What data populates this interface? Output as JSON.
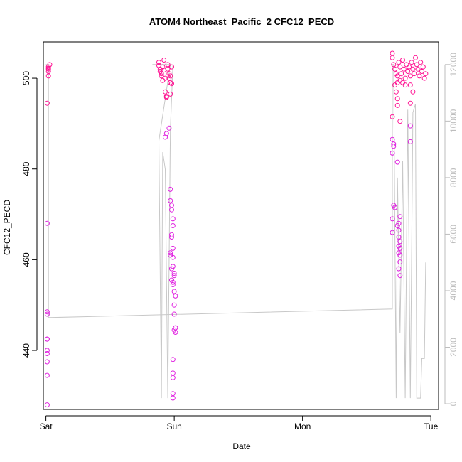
{
  "chart_data": {
    "type": "scatter",
    "title": "ATOM4 Northeast_Pacific_2 CFC12_PECD",
    "xlabel": "Date",
    "ylabel": "CFC12_PECD",
    "x_ticks": [
      {
        "label": "Sat",
        "value": 0
      },
      {
        "label": "Sun",
        "value": 1
      },
      {
        "label": "Mon",
        "value": 2
      },
      {
        "label": "Tue",
        "value": 3
      }
    ],
    "ylim": [
      427,
      508
    ],
    "y_ticks": [
      440,
      460,
      480,
      500
    ],
    "y2lim": [
      -200,
      12800
    ],
    "y2_ticks": [
      0,
      2000,
      4000,
      6000,
      8000,
      10000,
      12000
    ],
    "colors": {
      "points": "#ff1493",
      "points_alt": "#e020e0",
      "secondary_line": "#c8c8c8",
      "axis": "#000000",
      "secondary_axis": "#bdbdbd"
    },
    "series": [
      {
        "values": [
          [
            0.01,
            428.0
          ],
          [
            0.01,
            434.5
          ],
          [
            0.01,
            437.5
          ],
          [
            0.01,
            439.3
          ],
          [
            0.01,
            440.0
          ],
          [
            0.01,
            442.5
          ],
          [
            0.01,
            442.5
          ],
          [
            0.01,
            448.0
          ],
          [
            0.01,
            448.5
          ],
          [
            0.01,
            468.0
          ],
          [
            0.01,
            494.5
          ],
          [
            0.02,
            500.5
          ],
          [
            0.02,
            501.5
          ],
          [
            0.02,
            502.0
          ],
          [
            0.02,
            502.2
          ],
          [
            0.02,
            502.5
          ],
          [
            0.03,
            503.0
          ],
          [
            0.88,
            503.5
          ],
          [
            0.88,
            502.8
          ],
          [
            0.89,
            502.0
          ],
          [
            0.89,
            501.5
          ],
          [
            0.9,
            500.5
          ],
          [
            0.9,
            501.0
          ],
          [
            0.91,
            499.5
          ],
          [
            0.91,
            502.5
          ],
          [
            0.92,
            504.0
          ],
          [
            0.92,
            501.8
          ],
          [
            0.93,
            500.0
          ],
          [
            0.93,
            497.0
          ],
          [
            0.94,
            496.0
          ],
          [
            0.94,
            495.8
          ],
          [
            0.95,
            503.0
          ],
          [
            0.95,
            502.0
          ],
          [
            0.96,
            501.0
          ],
          [
            0.96,
            500.0
          ],
          [
            0.97,
            499.0
          ],
          [
            0.97,
            500.5
          ],
          [
            0.98,
            502.5
          ],
          [
            0.98,
            498.8
          ],
          [
            0.93,
            487.0
          ],
          [
            0.94,
            487.8
          ],
          [
            0.96,
            489.0
          ],
          [
            0.97,
            496.5
          ],
          [
            0.97,
            475.5
          ],
          [
            0.97,
            473.0
          ],
          [
            0.98,
            472.0
          ],
          [
            0.98,
            471.0
          ],
          [
            0.99,
            469.0
          ],
          [
            0.99,
            467.5
          ],
          [
            0.98,
            465.5
          ],
          [
            0.98,
            465.0
          ],
          [
            0.97,
            461.5
          ],
          [
            0.97,
            461.0
          ],
          [
            0.99,
            462.5
          ],
          [
            0.99,
            460.5
          ],
          [
            0.99,
            458.5
          ],
          [
            0.98,
            458.0
          ],
          [
            0.98,
            455.5
          ],
          [
            0.99,
            455.0
          ],
          [
            0.99,
            454.5
          ],
          [
            1.0,
            457.0
          ],
          [
            1.0,
            456.5
          ],
          [
            1.0,
            453.0
          ],
          [
            1.01,
            452.0
          ],
          [
            1.0,
            450.0
          ],
          [
            1.0,
            448.0
          ],
          [
            1.01,
            445.0
          ],
          [
            1.0,
            444.5
          ],
          [
            1.01,
            444.0
          ],
          [
            0.99,
            438.0
          ],
          [
            0.99,
            435.0
          ],
          [
            0.99,
            434.0
          ],
          [
            0.99,
            430.5
          ],
          [
            0.99,
            429.5
          ],
          [
            2.7,
            505.5
          ],
          [
            2.7,
            504.5
          ],
          [
            2.71,
            503.0
          ],
          [
            2.72,
            502.0
          ],
          [
            2.73,
            501.0
          ],
          [
            2.74,
            500.5
          ],
          [
            2.75,
            503.5
          ],
          [
            2.76,
            502.5
          ],
          [
            2.77,
            501.0
          ],
          [
            2.78,
            504.0
          ],
          [
            2.79,
            502.0
          ],
          [
            2.8,
            500.0
          ],
          [
            2.81,
            503.0
          ],
          [
            2.82,
            501.5
          ],
          [
            2.83,
            502.5
          ],
          [
            2.84,
            500.5
          ],
          [
            2.85,
            503.5
          ],
          [
            2.86,
            502.0
          ],
          [
            2.87,
            501.0
          ],
          [
            2.88,
            504.5
          ],
          [
            2.89,
            503.0
          ],
          [
            2.9,
            502.0
          ],
          [
            2.91,
            500.5
          ],
          [
            2.92,
            503.5
          ],
          [
            2.93,
            501.5
          ],
          [
            2.94,
            502.5
          ],
          [
            2.95,
            500.0
          ],
          [
            2.96,
            501.0
          ],
          [
            2.72,
            498.5
          ],
          [
            2.74,
            499.0
          ],
          [
            2.76,
            499.5
          ],
          [
            2.78,
            499.0
          ],
          [
            2.8,
            498.5
          ],
          [
            2.7,
            491.5
          ],
          [
            2.7,
            486.5
          ],
          [
            2.71,
            485.5
          ],
          [
            2.71,
            485.0
          ],
          [
            2.7,
            483.5
          ],
          [
            2.71,
            472.0
          ],
          [
            2.72,
            471.5
          ],
          [
            2.7,
            469.0
          ],
          [
            2.7,
            466.0
          ],
          [
            2.73,
            497.0
          ],
          [
            2.74,
            495.5
          ],
          [
            2.74,
            494.0
          ],
          [
            2.76,
            490.5
          ],
          [
            2.74,
            481.5
          ],
          [
            2.76,
            469.5
          ],
          [
            2.75,
            468.0
          ],
          [
            2.74,
            467.5
          ],
          [
            2.75,
            466.5
          ],
          [
            2.75,
            465.0
          ],
          [
            2.76,
            464.0
          ],
          [
            2.75,
            463.0
          ],
          [
            2.76,
            462.5
          ],
          [
            2.75,
            461.5
          ],
          [
            2.76,
            461.0
          ],
          [
            2.76,
            459.5
          ],
          [
            2.75,
            458.0
          ],
          [
            2.76,
            456.5
          ],
          [
            2.84,
            498.5
          ],
          [
            2.84,
            494.5
          ],
          [
            2.84,
            489.5
          ],
          [
            2.84,
            486.0
          ],
          [
            2.86,
            497.0
          ]
        ]
      }
    ],
    "secondary_series": {
      "values": [
        [
          0.0,
          12000
        ],
        [
          0.02,
          12000
        ],
        [
          0.02,
          3050
        ],
        [
          2.7,
          3350
        ],
        [
          2.7,
          12000
        ],
        [
          2.71,
          12000
        ],
        [
          2.72,
          6000
        ],
        [
          2.73,
          200
        ],
        [
          2.74,
          8000
        ],
        [
          2.76,
          2500
        ],
        [
          2.78,
          8600
        ],
        [
          2.8,
          200
        ],
        [
          2.82,
          10400
        ],
        [
          2.84,
          200
        ],
        [
          2.86,
          10300
        ],
        [
          2.88,
          10600
        ],
        [
          2.89,
          200
        ],
        [
          2.92,
          200
        ],
        [
          2.93,
          1600
        ],
        [
          2.95,
          1600
        ],
        [
          2.96,
          5000
        ]
      ],
      "sun_values": [
        [
          0.83,
          12000
        ],
        [
          0.97,
          12000
        ],
        [
          0.88,
          9300
        ],
        [
          0.9,
          200
        ],
        [
          0.91,
          8900
        ],
        [
          0.93,
          8300
        ],
        [
          0.95,
          200
        ],
        [
          0.97,
          9700
        ],
        [
          0.99,
          12000
        ]
      ]
    }
  }
}
